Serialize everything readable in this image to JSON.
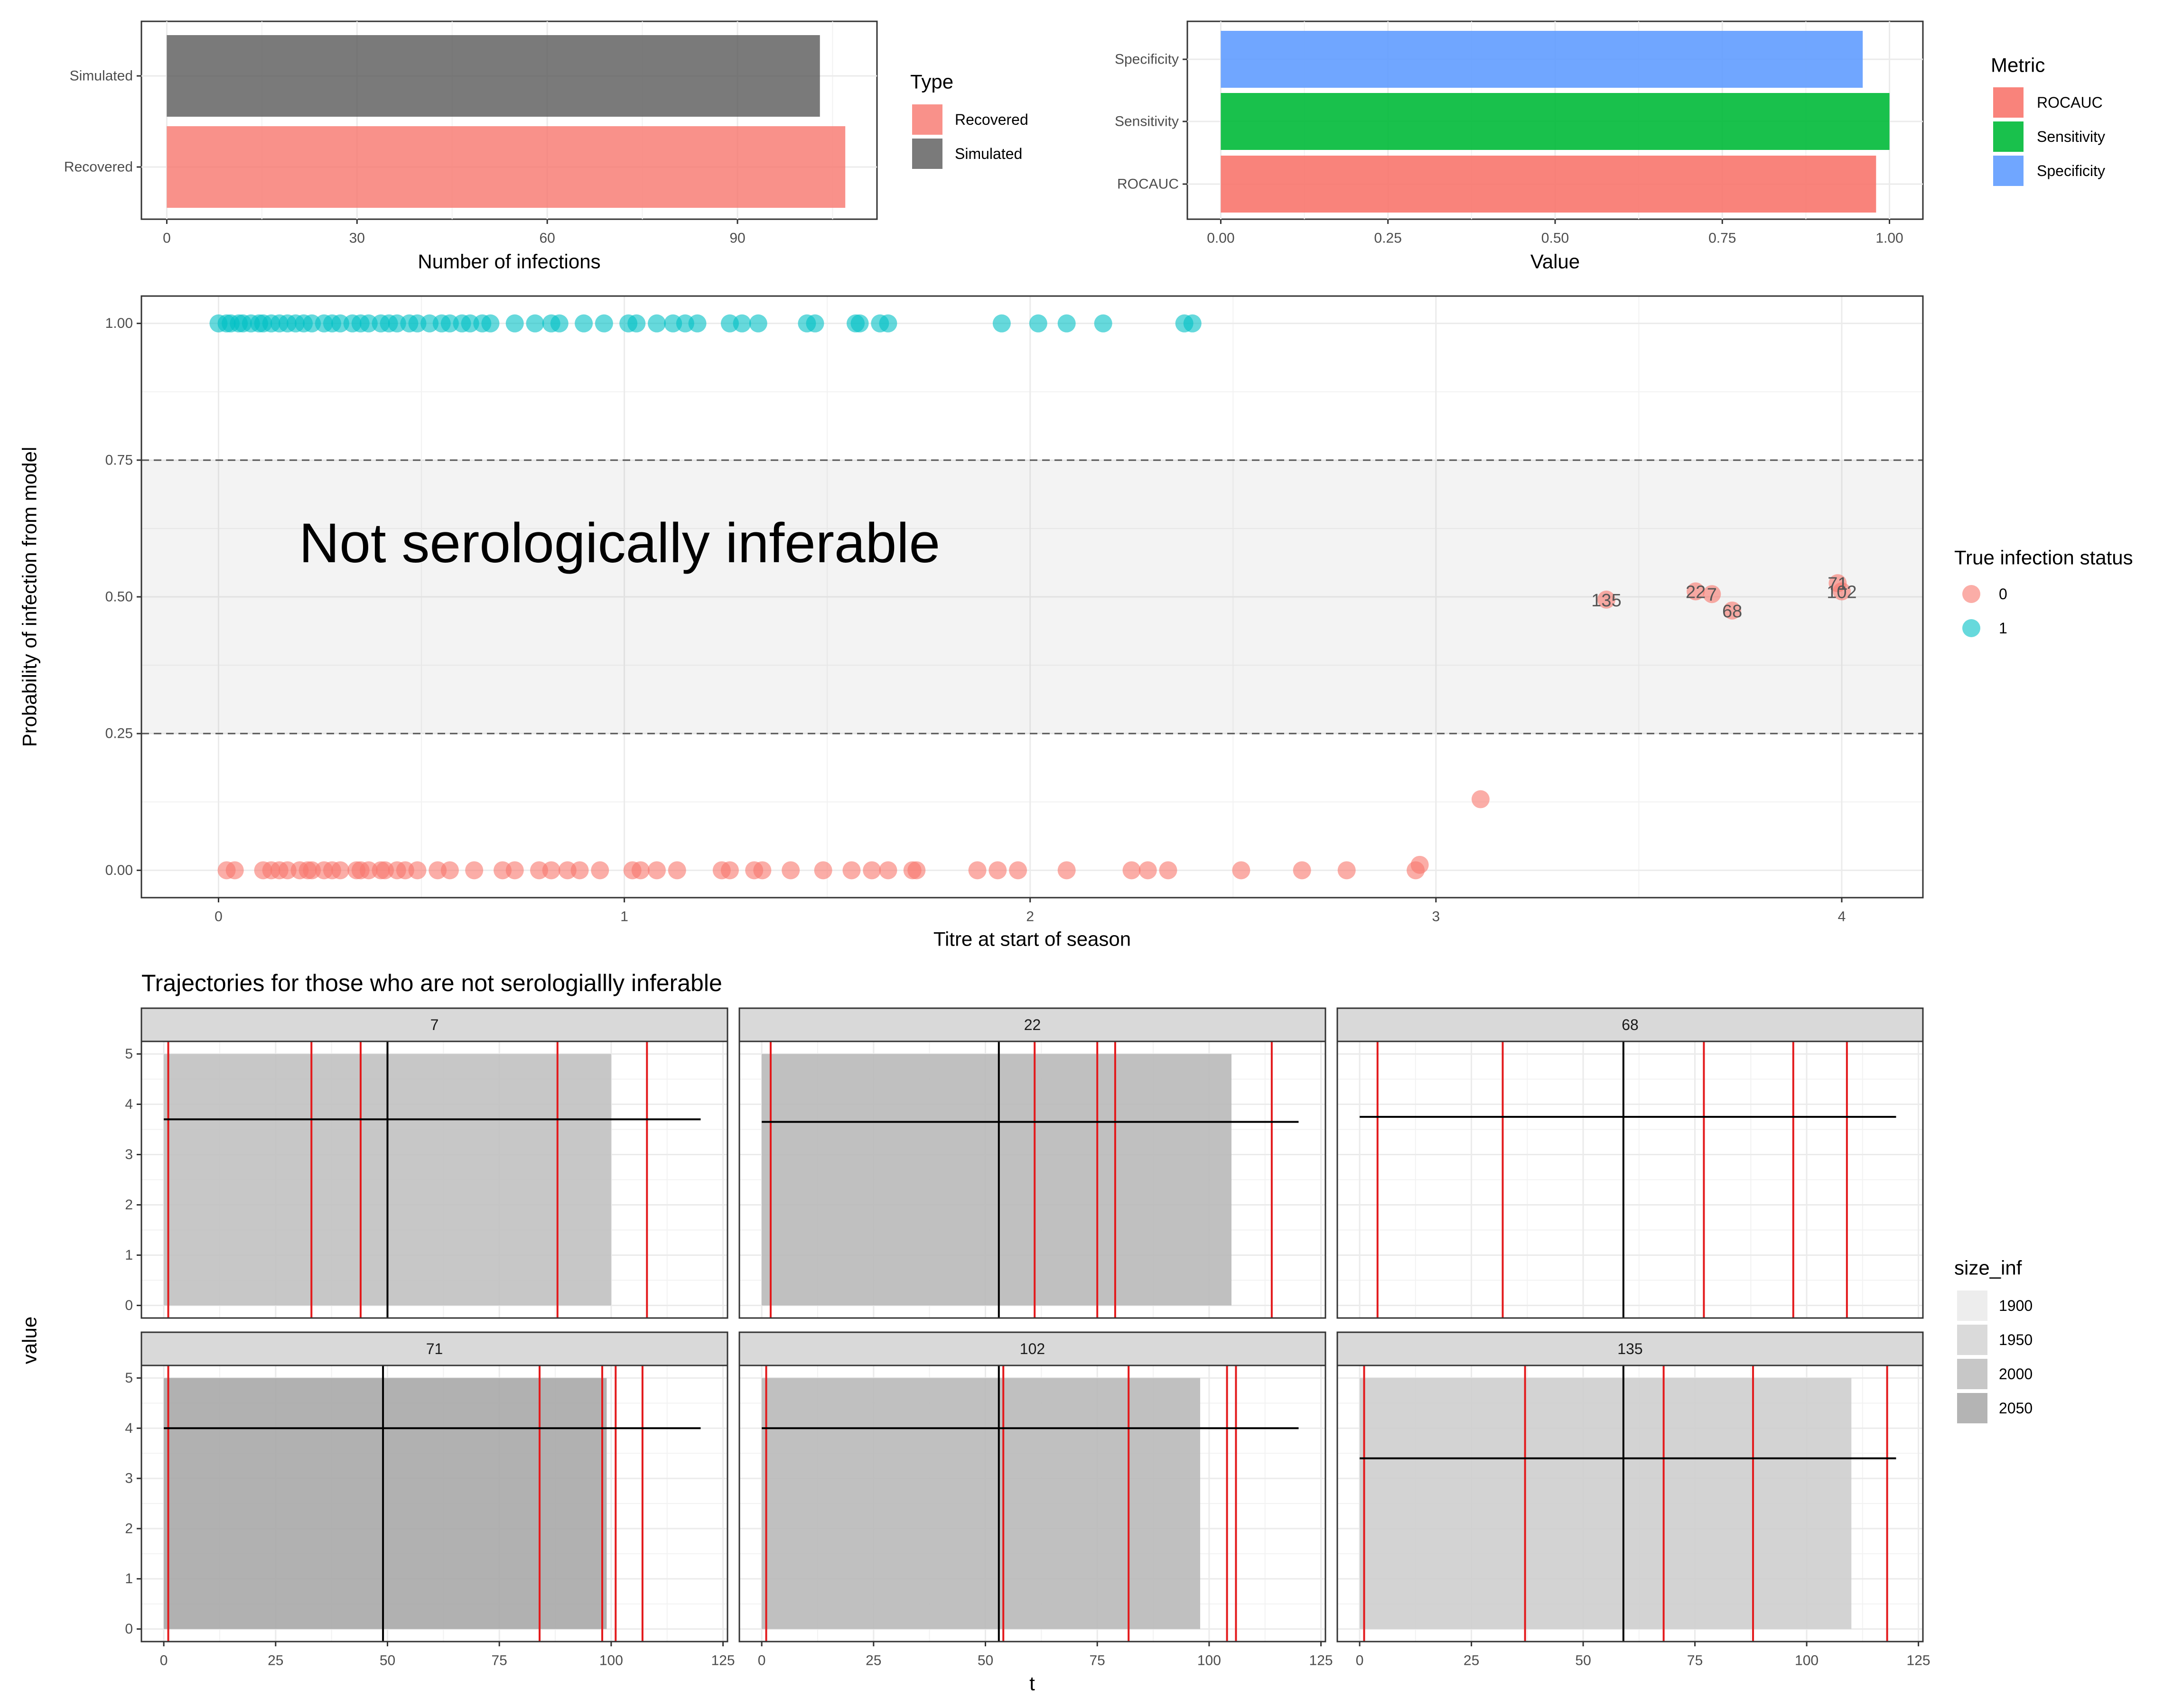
{
  "colors": {
    "red": "#F8766D",
    "teal": "#00BFC4",
    "green": "#00BA38",
    "blue": "#619CFF",
    "grey": "#595959",
    "line_red": "#E31A1C",
    "text": "#4D4D4D"
  },
  "chart_data": [
    {
      "id": "infections",
      "type": "bar",
      "orientation": "horizontal",
      "categories": [
        "Recovered",
        "Simulated"
      ],
      "values": [
        107,
        103
      ],
      "xlabel": "Number of infections",
      "xlim": [
        -4,
        112
      ],
      "xticks": [
        0,
        30,
        60,
        90
      ],
      "legend": {
        "title": "Type",
        "placement": "right",
        "entries": [
          "Recovered",
          "Simulated"
        ]
      }
    },
    {
      "id": "metrics",
      "type": "bar",
      "orientation": "horizontal",
      "categories": [
        "ROCAUC",
        "Sensitivity",
        "Specificity"
      ],
      "values": [
        0.98,
        1.0,
        0.96
      ],
      "xlabel": "Value",
      "xlim": [
        -0.05,
        1.05
      ],
      "xticks": [
        "0.00",
        "0.25",
        "0.50",
        "0.75",
        "1.00"
      ],
      "legend": {
        "title": "Metric",
        "placement": "right",
        "entries": [
          "ROCAUC",
          "Sensitivity",
          "Specificity"
        ]
      }
    },
    {
      "id": "probability",
      "type": "scatter",
      "xlabel": "Titre at start of season",
      "ylabel": "Probability of infection from model",
      "xlim": [
        -0.19,
        4.2
      ],
      "ylim": [
        -0.05,
        1.05
      ],
      "xticks": [
        "0",
        "1",
        "2",
        "3",
        "4"
      ],
      "yticks": [
        "0.00",
        "0.25",
        "0.50",
        "0.75",
        "1.00"
      ],
      "band": [
        0.25,
        0.75
      ],
      "band_label": "Not serologically inferable",
      "legend": {
        "title": "True infection status",
        "placement": "right",
        "entries": [
          "0",
          "1"
        ]
      },
      "series": [
        {
          "name": "1",
          "y": 1.0,
          "x": [
            0.0,
            0.02,
            0.03,
            0.05,
            0.06,
            0.08,
            0.1,
            0.11,
            0.13,
            0.15,
            0.17,
            0.19,
            0.21,
            0.23,
            0.26,
            0.28,
            0.3,
            0.33,
            0.35,
            0.37,
            0.4,
            0.42,
            0.44,
            0.47,
            0.49,
            0.52,
            0.55,
            0.57,
            0.6,
            0.62,
            0.65,
            0.67,
            0.73,
            0.78,
            0.82,
            0.84,
            0.9,
            0.95,
            1.01,
            1.03,
            1.08,
            1.12,
            1.15,
            1.18,
            1.26,
            1.29,
            1.33,
            1.45,
            1.47,
            1.57,
            1.58,
            1.63,
            1.65,
            1.93,
            2.02,
            2.09,
            2.18,
            2.38,
            2.4
          ]
        },
        {
          "name": "0",
          "y": 0.0,
          "x": [
            0.02,
            0.04,
            0.11,
            0.13,
            0.15,
            0.17,
            0.2,
            0.22,
            0.23,
            0.26,
            0.28,
            0.3,
            0.34,
            0.35,
            0.37,
            0.4,
            0.41,
            0.44,
            0.46,
            0.49,
            0.54,
            0.57,
            0.63,
            0.7,
            0.73,
            0.79,
            0.82,
            0.86,
            0.89,
            0.94,
            1.02,
            1.04,
            1.08,
            1.13,
            1.24,
            1.26,
            1.32,
            1.34,
            1.41,
            1.49,
            1.56,
            1.61,
            1.65,
            1.71,
            1.72,
            1.87,
            1.92,
            1.97,
            2.09,
            2.25,
            2.29,
            2.34,
            2.52,
            2.67,
            2.78,
            2.95
          ],
          "extra_points": [
            [
              2.96,
              0.01
            ],
            [
              3.11,
              0.13
            ]
          ]
        }
      ],
      "labeled_points": [
        {
          "label": "135",
          "x": 3.42,
          "y": 0.495
        },
        {
          "label": "22",
          "x": 3.64,
          "y": 0.51
        },
        {
          "label": "7",
          "x": 3.68,
          "y": 0.505
        },
        {
          "label": "68",
          "x": 3.73,
          "y": 0.475
        },
        {
          "label": "71",
          "x": 3.99,
          "y": 0.525
        },
        {
          "label": "102",
          "x": 4.0,
          "y": 0.51
        }
      ]
    },
    {
      "id": "trajectories",
      "type": "bar",
      "title": "Trajectories for those who are not serologiallly inferable",
      "xlabel": "t",
      "ylabel": "value",
      "xlim": [
        -5,
        126
      ],
      "ylim": [
        -0.25,
        5.25
      ],
      "xticks": [
        "0",
        "25",
        "50",
        "75",
        "100",
        "125"
      ],
      "yticks": [
        "0",
        "1",
        "2",
        "3",
        "4",
        "5"
      ],
      "legend": {
        "title": "size_inf",
        "placement": "right",
        "entries": [
          "1900",
          "1950",
          "2000",
          "2050"
        ]
      },
      "panels": [
        {
          "label": "7",
          "rect_end": 100,
          "size_inf": 2000,
          "hline": 3.7,
          "hline_range": [
            0,
            120
          ],
          "vline": 50,
          "red": [
            1,
            33,
            44,
            88,
            108
          ]
        },
        {
          "label": "22",
          "rect_end": 105,
          "size_inf": 2020,
          "hline": 3.65,
          "hline_range": [
            0,
            120
          ],
          "vline": 53,
          "red": [
            2,
            61,
            75,
            79,
            114
          ]
        },
        {
          "label": "68",
          "rect_end": null,
          "size_inf": null,
          "hline": 3.75,
          "hline_range": [
            0,
            120
          ],
          "vline": 59,
          "red": [
            4,
            32,
            77,
            97,
            109
          ]
        },
        {
          "label": "71",
          "rect_end": 99,
          "size_inf": 2060,
          "hline": 4.0,
          "hline_range": [
            0,
            120
          ],
          "vline": 49,
          "red": [
            1,
            84,
            98,
            101,
            107
          ]
        },
        {
          "label": "102",
          "rect_end": 98,
          "size_inf": 2020,
          "hline": 4.0,
          "hline_range": [
            0,
            120
          ],
          "vline": 53,
          "red": [
            1,
            54,
            82,
            104,
            106
          ]
        },
        {
          "label": "135",
          "rect_end": 110,
          "size_inf": 1970,
          "hline": 3.4,
          "hline_range": [
            0,
            120
          ],
          "vline": 59,
          "red": [
            1,
            37,
            68,
            88,
            118
          ]
        }
      ]
    }
  ]
}
